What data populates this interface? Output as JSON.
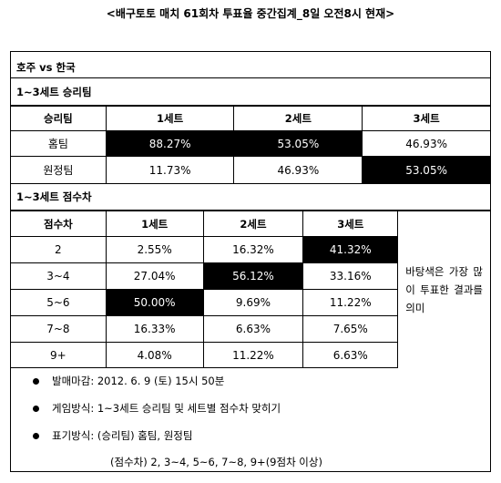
{
  "title": "<배구토토 매치 61회차 투표율 중간집계_8일 오전8시 현재>",
  "match": "호주 vs 한국",
  "section1": {
    "title": "1~3세트 승리팀",
    "headers": [
      "승리팀",
      "1세트",
      "2세트",
      "3세트"
    ],
    "rows": [
      {
        "label": "홈팀",
        "values": [
          "88.27%",
          "53.05%",
          "46.93%"
        ]
      },
      {
        "label": "원정팀",
        "values": [
          "11.73%",
          "46.93%",
          "53.05%"
        ]
      }
    ]
  },
  "section2": {
    "title": "1~3세트 점수차",
    "headers": [
      "점수차",
      "1세트",
      "2세트",
      "3세트"
    ],
    "rows": [
      {
        "label": "2",
        "values": [
          "2.55%",
          "16.32%",
          "41.32%"
        ]
      },
      {
        "label": "3~4",
        "values": [
          "27.04%",
          "56.12%",
          "33.16%"
        ]
      },
      {
        "label": "5~6",
        "values": [
          "50.00%",
          "9.69%",
          "11.22%"
        ]
      },
      {
        "label": "7~8",
        "values": [
          "16.33%",
          "6.63%",
          "7.65%"
        ]
      },
      {
        "label": "9+",
        "values": [
          "4.08%",
          "11.22%",
          "6.63%"
        ]
      }
    ],
    "note": "바탕색은 가장 많이 투표한 결과를 의미"
  },
  "info": {
    "deadline": "발매마감: 2012. 6. 9 (토) 15시 50분",
    "method": "게임방식: 1~3세트 승리팀 및 세트별 점수차 맞히기",
    "notation": "표기방식: (승리팀) 홈팀, 원정팀",
    "notation2": "(점수차) 2, 3~4, 5~6, 7~8, 9+(9점차 이상)"
  }
}
